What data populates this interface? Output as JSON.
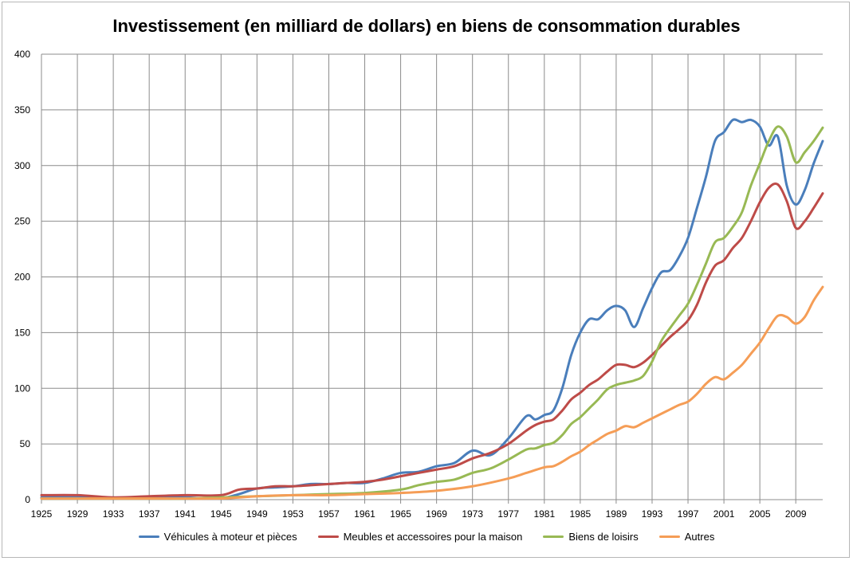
{
  "chart_data": {
    "type": "line",
    "title": "Investissement (en milliard de dollars) en biens de consommation durables",
    "xlabel": "",
    "ylabel": "",
    "x_range": [
      1925,
      2012
    ],
    "ylim": [
      0,
      400
    ],
    "y_ticks": [
      0,
      50,
      100,
      150,
      200,
      250,
      300,
      350,
      400
    ],
    "x_tick_labels": [
      "1925",
      "1929",
      "1933",
      "1937",
      "1941",
      "1945",
      "1949",
      "1953",
      "1957",
      "1961",
      "1965",
      "1969",
      "1973",
      "1977",
      "1981",
      "1985",
      "1989",
      "1993",
      "1997",
      "2001",
      "2005",
      "2009"
    ],
    "grid": true,
    "legend_position": "bottom",
    "series": [
      {
        "name": "Véhicules à moteur et pièces",
        "color": "#4a7ebb",
        "points": [
          [
            1925,
            2
          ],
          [
            1929,
            2
          ],
          [
            1933,
            1
          ],
          [
            1937,
            2
          ],
          [
            1941,
            2
          ],
          [
            1943,
            1
          ],
          [
            1945,
            1
          ],
          [
            1947,
            5
          ],
          [
            1949,
            10
          ],
          [
            1951,
            11
          ],
          [
            1953,
            12
          ],
          [
            1955,
            14
          ],
          [
            1957,
            14
          ],
          [
            1959,
            15
          ],
          [
            1961,
            15
          ],
          [
            1963,
            19
          ],
          [
            1965,
            24
          ],
          [
            1967,
            25
          ],
          [
            1969,
            30
          ],
          [
            1971,
            33
          ],
          [
            1973,
            44
          ],
          [
            1975,
            40
          ],
          [
            1977,
            55
          ],
          [
            1979,
            75
          ],
          [
            1980,
            72
          ],
          [
            1981,
            76
          ],
          [
            1982,
            80
          ],
          [
            1983,
            100
          ],
          [
            1984,
            130
          ],
          [
            1985,
            150
          ],
          [
            1986,
            162
          ],
          [
            1987,
            162
          ],
          [
            1988,
            170
          ],
          [
            1989,
            174
          ],
          [
            1990,
            170
          ],
          [
            1991,
            155
          ],
          [
            1992,
            172
          ],
          [
            1993,
            190
          ],
          [
            1994,
            204
          ],
          [
            1995,
            206
          ],
          [
            1996,
            218
          ],
          [
            1997,
            235
          ],
          [
            1998,
            262
          ],
          [
            1999,
            290
          ],
          [
            2000,
            322
          ],
          [
            2001,
            330
          ],
          [
            2002,
            341
          ],
          [
            2003,
            339
          ],
          [
            2004,
            341
          ],
          [
            2005,
            335
          ],
          [
            2006,
            318
          ],
          [
            2007,
            326
          ],
          [
            2008,
            282
          ],
          [
            2009,
            265
          ],
          [
            2010,
            278
          ],
          [
            2011,
            302
          ],
          [
            2012,
            322
          ]
        ]
      },
      {
        "name": "Meubles et accessoires pour la maison",
        "color": "#be4b48",
        "points": [
          [
            1925,
            4
          ],
          [
            1929,
            4
          ],
          [
            1933,
            2
          ],
          [
            1937,
            3
          ],
          [
            1941,
            4
          ],
          [
            1945,
            4
          ],
          [
            1947,
            9
          ],
          [
            1949,
            10
          ],
          [
            1951,
            12
          ],
          [
            1953,
            12
          ],
          [
            1955,
            13
          ],
          [
            1957,
            14
          ],
          [
            1959,
            15
          ],
          [
            1961,
            16
          ],
          [
            1963,
            18
          ],
          [
            1965,
            21
          ],
          [
            1967,
            24
          ],
          [
            1969,
            27
          ],
          [
            1971,
            30
          ],
          [
            1973,
            37
          ],
          [
            1975,
            42
          ],
          [
            1977,
            50
          ],
          [
            1979,
            62
          ],
          [
            1980,
            67
          ],
          [
            1981,
            70
          ],
          [
            1982,
            72
          ],
          [
            1983,
            80
          ],
          [
            1984,
            90
          ],
          [
            1985,
            96
          ],
          [
            1986,
            103
          ],
          [
            1987,
            108
          ],
          [
            1988,
            115
          ],
          [
            1989,
            121
          ],
          [
            1990,
            121
          ],
          [
            1991,
            119
          ],
          [
            1992,
            123
          ],
          [
            1993,
            130
          ],
          [
            1994,
            138
          ],
          [
            1995,
            146
          ],
          [
            1996,
            153
          ],
          [
            1997,
            161
          ],
          [
            1998,
            175
          ],
          [
            1999,
            195
          ],
          [
            2000,
            210
          ],
          [
            2001,
            215
          ],
          [
            2002,
            226
          ],
          [
            2003,
            235
          ],
          [
            2004,
            250
          ],
          [
            2005,
            267
          ],
          [
            2006,
            280
          ],
          [
            2007,
            283
          ],
          [
            2008,
            268
          ],
          [
            2009,
            244
          ],
          [
            2010,
            250
          ],
          [
            2011,
            262
          ],
          [
            2012,
            275
          ]
        ]
      },
      {
        "name": "Biens de loisirs",
        "color": "#98b954",
        "points": [
          [
            1925,
            1
          ],
          [
            1929,
            1
          ],
          [
            1933,
            1
          ],
          [
            1937,
            1
          ],
          [
            1941,
            1
          ],
          [
            1945,
            2
          ],
          [
            1949,
            3
          ],
          [
            1953,
            4
          ],
          [
            1957,
            5
          ],
          [
            1961,
            6
          ],
          [
            1965,
            9
          ],
          [
            1967,
            13
          ],
          [
            1969,
            16
          ],
          [
            1971,
            18
          ],
          [
            1973,
            24
          ],
          [
            1975,
            28
          ],
          [
            1977,
            36
          ],
          [
            1979,
            45
          ],
          [
            1980,
            46
          ],
          [
            1981,
            49
          ],
          [
            1982,
            51
          ],
          [
            1983,
            58
          ],
          [
            1984,
            68
          ],
          [
            1985,
            74
          ],
          [
            1986,
            82
          ],
          [
            1987,
            90
          ],
          [
            1988,
            99
          ],
          [
            1989,
            103
          ],
          [
            1990,
            105
          ],
          [
            1991,
            107
          ],
          [
            1992,
            111
          ],
          [
            1993,
            124
          ],
          [
            1994,
            142
          ],
          [
            1995,
            154
          ],
          [
            1996,
            165
          ],
          [
            1997,
            176
          ],
          [
            1998,
            193
          ],
          [
            1999,
            212
          ],
          [
            2000,
            231
          ],
          [
            2001,
            235
          ],
          [
            2002,
            245
          ],
          [
            2003,
            258
          ],
          [
            2004,
            282
          ],
          [
            2005,
            302
          ],
          [
            2006,
            322
          ],
          [
            2007,
            335
          ],
          [
            2008,
            326
          ],
          [
            2009,
            303
          ],
          [
            2010,
            312
          ],
          [
            2011,
            322
          ],
          [
            2012,
            334
          ]
        ]
      },
      {
        "name": "Autres",
        "color": "#f59d56",
        "points": [
          [
            1925,
            1
          ],
          [
            1929,
            1
          ],
          [
            1933,
            1
          ],
          [
            1937,
            1
          ],
          [
            1941,
            1
          ],
          [
            1945,
            1
          ],
          [
            1949,
            3
          ],
          [
            1953,
            4
          ],
          [
            1957,
            4
          ],
          [
            1961,
            5
          ],
          [
            1965,
            6
          ],
          [
            1969,
            8
          ],
          [
            1973,
            12
          ],
          [
            1977,
            19
          ],
          [
            1979,
            24
          ],
          [
            1981,
            29
          ],
          [
            1982,
            30
          ],
          [
            1983,
            34
          ],
          [
            1984,
            39
          ],
          [
            1985,
            43
          ],
          [
            1986,
            49
          ],
          [
            1987,
            54
          ],
          [
            1988,
            59
          ],
          [
            1989,
            62
          ],
          [
            1990,
            66
          ],
          [
            1991,
            65
          ],
          [
            1992,
            69
          ],
          [
            1993,
            73
          ],
          [
            1994,
            77
          ],
          [
            1995,
            81
          ],
          [
            1996,
            85
          ],
          [
            1997,
            88
          ],
          [
            1998,
            95
          ],
          [
            1999,
            104
          ],
          [
            2000,
            110
          ],
          [
            2001,
            108
          ],
          [
            2002,
            114
          ],
          [
            2003,
            121
          ],
          [
            2004,
            131
          ],
          [
            2005,
            141
          ],
          [
            2006,
            154
          ],
          [
            2007,
            165
          ],
          [
            2008,
            164
          ],
          [
            2009,
            158
          ],
          [
            2010,
            164
          ],
          [
            2011,
            179
          ],
          [
            2012,
            191
          ]
        ]
      }
    ]
  }
}
